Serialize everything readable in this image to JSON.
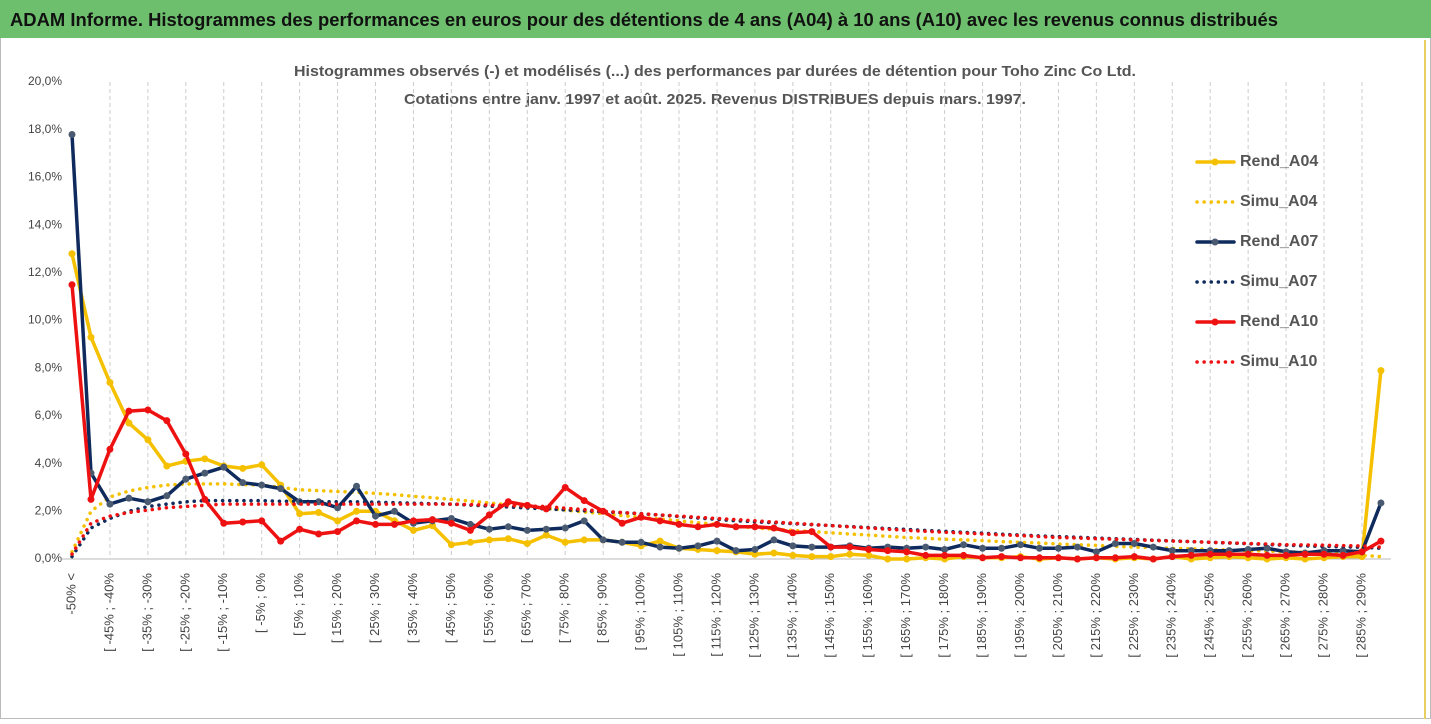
{
  "chart_data": {
    "type": "line",
    "page_title": "ADAM Informe. Histogrammes des performances en euros pour des détentions de 4 ans (A04) à 10 ans (A10) avec les revenus connus distribués",
    "title": [
      "Histogrammes observés (-) et modélisés (...) des performances par durées de détention pour Toho Zinc Co Ltd.",
      "Cotations entre janv. 1997 et août. 2025. Revenus DISTRIBUES depuis mars. 1997."
    ],
    "categories": [
      "-50% <",
      null,
      "[ -45% ; -40%",
      null,
      "[ -35% ; -30%",
      null,
      "[ -25% ; -20%",
      null,
      "[ -15% ; -10%",
      null,
      "[ -5% ; 0%",
      null,
      "[ 5% ; 10%",
      null,
      "[ 15% ; 20%",
      null,
      "[ 25% ; 30%",
      null,
      "[ 35% ; 40%",
      null,
      "[ 45% ; 50%",
      null,
      "[ 55% ; 60%",
      null,
      "[ 65% ; 70%",
      null,
      "[ 75% ; 80%",
      null,
      "[ 85% ; 90%",
      null,
      "[ 95% ; 100%",
      null,
      "[ 105% ; 110%",
      null,
      "[ 115% ; 120%",
      null,
      "[ 125% ; 130%",
      null,
      "[ 135% ; 140%",
      null,
      "[ 145% ; 150%",
      null,
      "[ 155% ; 160%",
      null,
      "[ 165% ; 170%",
      null,
      "[ 175% ; 180%",
      null,
      "[ 185% ; 190%",
      null,
      "[ 195% ; 200%",
      null,
      "[ 205% ; 210%",
      null,
      "[ 215% ; 220%",
      null,
      "[ 225% ; 230%",
      null,
      "[ 235% ; 240%",
      null,
      "[ 245% ; 250%",
      null,
      "[ 255% ; 260%",
      null,
      "[ 265% ; 270%",
      null,
      "[ 275% ; 280%",
      null,
      "[ 285% ; 290%",
      null
    ],
    "ylim": [
      0,
      20
    ],
    "yticks": [
      {
        "value": 0,
        "label": "0,0%"
      },
      {
        "value": 2,
        "label": "2,0%"
      },
      {
        "value": 4,
        "label": "4,0%"
      },
      {
        "value": 6,
        "label": "6,0%"
      },
      {
        "value": 8,
        "label": "8,0%"
      },
      {
        "value": 10,
        "label": "10,0%"
      },
      {
        "value": 12,
        "label": "12,0%"
      },
      {
        "value": 14,
        "label": "14,0%"
      },
      {
        "value": 16,
        "label": "16,0%"
      },
      {
        "value": 18,
        "label": "18,0%"
      },
      {
        "value": 20,
        "label": "20,0%"
      }
    ],
    "legend": "right",
    "series": [
      {
        "name": "Rend_A04",
        "color": "#f5c000",
        "style": "solid",
        "values": [
          12.8,
          9.3,
          7.4,
          5.7,
          5.0,
          3.9,
          4.1,
          4.2,
          3.9,
          3.8,
          3.95,
          3.1,
          1.9,
          1.95,
          1.6,
          2.0,
          2.0,
          1.6,
          1.2,
          1.4,
          0.6,
          0.7,
          0.8,
          0.85,
          0.65,
          1.0,
          0.7,
          0.8,
          0.8,
          0.7,
          0.55,
          0.75,
          0.45,
          0.4,
          0.35,
          0.3,
          0.2,
          0.25,
          0.15,
          0.1,
          0.1,
          0.2,
          0.15,
          0.0,
          0.0,
          0.05,
          0.0,
          0.1,
          0.05,
          0.05,
          0.1,
          0.0,
          0.05,
          0.0,
          0.05,
          0.0,
          0.05,
          0.0,
          0.1,
          0.0,
          0.05,
          0.1,
          0.05,
          0.0,
          0.05,
          0.0,
          0.05,
          0.1,
          0.1,
          7.9
        ]
      },
      {
        "name": "Simu_A04",
        "color": "#f5c000",
        "style": "dotted",
        "values": [
          0.3,
          2.0,
          2.6,
          2.85,
          3.0,
          3.1,
          3.15,
          3.15,
          3.15,
          3.12,
          3.1,
          3.0,
          2.9,
          2.87,
          2.83,
          2.8,
          2.75,
          2.7,
          2.63,
          2.57,
          2.5,
          2.43,
          2.35,
          2.28,
          2.2,
          2.12,
          2.05,
          1.97,
          1.9,
          1.82,
          1.75,
          1.68,
          1.6,
          1.52,
          1.45,
          1.38,
          1.3,
          1.25,
          1.2,
          1.15,
          1.1,
          1.05,
          1.0,
          0.95,
          0.9,
          0.87,
          0.83,
          0.8,
          0.77,
          0.73,
          0.7,
          0.67,
          0.63,
          0.6,
          0.57,
          0.53,
          0.5,
          0.48,
          0.45,
          0.43,
          0.4,
          0.38,
          0.35,
          0.33,
          0.3,
          0.28,
          0.25,
          0.2,
          0.15,
          0.1
        ]
      },
      {
        "name": "Rend_A07",
        "color": "#0f2a5c",
        "style": "solid",
        "values": [
          17.8,
          3.6,
          2.3,
          2.55,
          2.4,
          2.65,
          3.35,
          3.6,
          3.85,
          3.2,
          3.1,
          2.95,
          2.4,
          2.4,
          2.15,
          3.05,
          1.8,
          2.0,
          1.5,
          1.6,
          1.7,
          1.45,
          1.25,
          1.35,
          1.2,
          1.25,
          1.3,
          1.6,
          0.8,
          0.7,
          0.7,
          0.5,
          0.45,
          0.55,
          0.75,
          0.35,
          0.4,
          0.8,
          0.55,
          0.5,
          0.5,
          0.55,
          0.45,
          0.5,
          0.45,
          0.5,
          0.4,
          0.6,
          0.45,
          0.45,
          0.6,
          0.45,
          0.45,
          0.5,
          0.3,
          0.65,
          0.65,
          0.5,
          0.35,
          0.35,
          0.35,
          0.35,
          0.4,
          0.45,
          0.3,
          0.25,
          0.35,
          0.35,
          0.3,
          2.35
        ]
      },
      {
        "name": "Simu_A07",
        "color": "#0f2a5c",
        "style": "dotted",
        "values": [
          0.1,
          1.3,
          1.7,
          2.0,
          2.2,
          2.3,
          2.4,
          2.45,
          2.45,
          2.45,
          2.45,
          2.42,
          2.42,
          2.4,
          2.4,
          2.4,
          2.38,
          2.36,
          2.34,
          2.32,
          2.3,
          2.26,
          2.22,
          2.18,
          2.14,
          2.1,
          2.06,
          2.02,
          1.98,
          1.94,
          1.9,
          1.84,
          1.78,
          1.72,
          1.66,
          1.6,
          1.56,
          1.52,
          1.48,
          1.44,
          1.4,
          1.36,
          1.32,
          1.28,
          1.24,
          1.2,
          1.16,
          1.12,
          1.08,
          1.04,
          1.0,
          0.97,
          0.94,
          0.91,
          0.88,
          0.85,
          0.82,
          0.79,
          0.76,
          0.73,
          0.7,
          0.67,
          0.64,
          0.61,
          0.58,
          0.55,
          0.53,
          0.51,
          0.49,
          0.45
        ]
      },
      {
        "name": "Rend_A10",
        "color": "#ee1111",
        "style": "solid",
        "values": [
          11.5,
          2.5,
          4.6,
          6.2,
          6.25,
          5.8,
          4.4,
          2.5,
          1.5,
          1.55,
          1.6,
          0.75,
          1.25,
          1.05,
          1.15,
          1.6,
          1.45,
          1.45,
          1.6,
          1.65,
          1.5,
          1.2,
          1.85,
          2.4,
          2.25,
          2.1,
          3.0,
          2.45,
          2.0,
          1.5,
          1.75,
          1.6,
          1.45,
          1.35,
          1.45,
          1.35,
          1.35,
          1.3,
          1.1,
          1.15,
          0.5,
          0.5,
          0.4,
          0.35,
          0.3,
          0.15,
          0.15,
          0.15,
          0.05,
          0.1,
          0.05,
          0.05,
          0.05,
          0.0,
          0.05,
          0.05,
          0.1,
          0.0,
          0.1,
          0.15,
          0.2,
          0.2,
          0.2,
          0.15,
          0.15,
          0.2,
          0.2,
          0.15,
          0.3,
          0.75
        ]
      },
      {
        "name": "Simu_A10",
        "color": "#ee1111",
        "style": "dotted",
        "values": [
          0.2,
          1.5,
          1.8,
          1.95,
          2.05,
          2.15,
          2.2,
          2.25,
          2.3,
          2.3,
          2.3,
          2.3,
          2.3,
          2.3,
          2.3,
          2.3,
          2.3,
          2.3,
          2.3,
          2.3,
          2.3,
          2.28,
          2.26,
          2.24,
          2.22,
          2.2,
          2.13,
          2.07,
          2.0,
          1.95,
          1.9,
          1.85,
          1.8,
          1.75,
          1.7,
          1.65,
          1.6,
          1.55,
          1.5,
          1.45,
          1.4,
          1.35,
          1.3,
          1.25,
          1.2,
          1.16,
          1.12,
          1.09,
          1.05,
          1.01,
          0.98,
          0.94,
          0.9,
          0.88,
          0.85,
          0.83,
          0.8,
          0.78,
          0.75,
          0.73,
          0.7,
          0.68,
          0.65,
          0.63,
          0.6,
          0.59,
          0.58,
          0.56,
          0.55,
          0.5
        ]
      }
    ]
  }
}
